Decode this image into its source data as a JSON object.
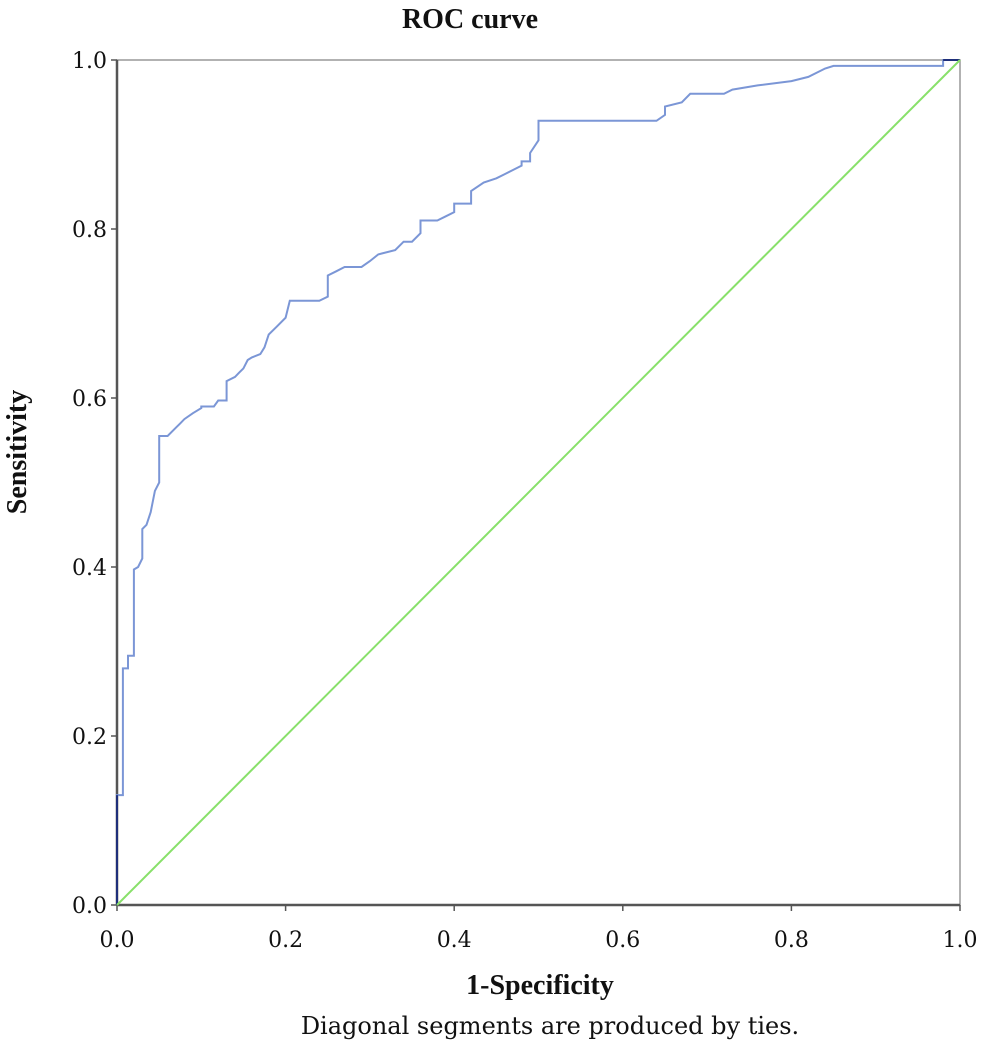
{
  "chart_data": {
    "type": "line",
    "title": "ROC curve",
    "xlabel": "1-Specificity",
    "ylabel": "Sensitivity",
    "footnote": "Diagonal segments are produced by ties.",
    "xlim": [
      0,
      1
    ],
    "ylim": [
      0,
      1
    ],
    "x_ticks": [
      "0.0",
      "0.2",
      "0.4",
      "0.6",
      "0.8",
      "1.0"
    ],
    "y_ticks": [
      "0.0",
      "0.2",
      "0.4",
      "0.6",
      "0.8",
      "1.0"
    ],
    "grid": false,
    "colors": {
      "roc": "#7b96d6",
      "reference": "#88e06a",
      "axis": "#555555",
      "frame": "#999999",
      "roc_start": "#1f2f7a"
    },
    "series": [
      {
        "role": "roc",
        "x": [
          0,
          0,
          0.007,
          0.007,
          0.013,
          0.013,
          0.02,
          0.02,
          0.025,
          0.03,
          0.03,
          0.035,
          0.04,
          0.045,
          0.05,
          0.05,
          0.06,
          0.07,
          0.075,
          0.08,
          0.09,
          0.1,
          0.1,
          0.115,
          0.12,
          0.13,
          0.13,
          0.14,
          0.145,
          0.15,
          0.155,
          0.16,
          0.17,
          0.175,
          0.18,
          0.19,
          0.2,
          0.205,
          0.24,
          0.25,
          0.25,
          0.26,
          0.27,
          0.29,
          0.3,
          0.31,
          0.33,
          0.34,
          0.35,
          0.36,
          0.36,
          0.38,
          0.39,
          0.4,
          0.4,
          0.42,
          0.42,
          0.435,
          0.45,
          0.46,
          0.47,
          0.48,
          0.48,
          0.49,
          0.49,
          0.5,
          0.5,
          0.51,
          0.55,
          0.6,
          0.64,
          0.65,
          0.65,
          0.67,
          0.68,
          0.72,
          0.73,
          0.76,
          0.8,
          0.82,
          0.84,
          0.85,
          0.88,
          0.9,
          0.95,
          0.98,
          0.98,
          1
        ],
        "y": [
          0,
          0.13,
          0.13,
          0.28,
          0.28,
          0.295,
          0.295,
          0.397,
          0.4,
          0.41,
          0.445,
          0.45,
          0.465,
          0.49,
          0.5,
          0.555,
          0.555,
          0.565,
          0.57,
          0.575,
          0.582,
          0.588,
          0.59,
          0.59,
          0.597,
          0.597,
          0.62,
          0.625,
          0.63,
          0.635,
          0.645,
          0.648,
          0.652,
          0.66,
          0.675,
          0.685,
          0.695,
          0.715,
          0.715,
          0.72,
          0.745,
          0.75,
          0.755,
          0.755,
          0.762,
          0.77,
          0.775,
          0.785,
          0.785,
          0.795,
          0.81,
          0.81,
          0.815,
          0.82,
          0.83,
          0.83,
          0.845,
          0.855,
          0.86,
          0.865,
          0.87,
          0.875,
          0.88,
          0.88,
          0.89,
          0.905,
          0.928,
          0.928,
          0.928,
          0.928,
          0.928,
          0.935,
          0.945,
          0.95,
          0.96,
          0.96,
          0.965,
          0.97,
          0.975,
          0.98,
          0.99,
          0.993,
          0.993,
          0.993,
          0.993,
          0.993,
          1,
          1
        ]
      },
      {
        "role": "reference",
        "x": [
          0,
          1
        ],
        "y": [
          0,
          1
        ]
      }
    ]
  }
}
